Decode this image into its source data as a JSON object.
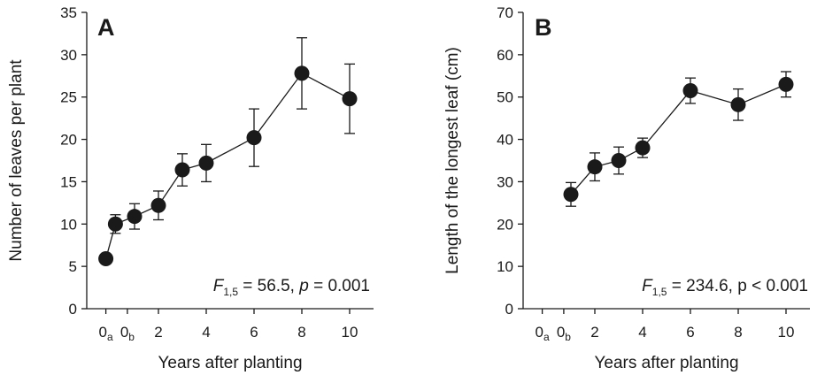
{
  "chart_data": [
    {
      "type": "line",
      "panel_label": "A",
      "xlabel": "Years after planting",
      "ylabel": "Number of leaves per plant",
      "ylim": [
        0,
        35
      ],
      "yticks": [
        "0",
        "5",
        "10",
        "15",
        "20",
        "25",
        "30",
        "35"
      ],
      "xticks": [
        {
          "main": "0",
          "sub": "a",
          "x": -0.2
        },
        {
          "main": "0",
          "sub": "b",
          "x": 0.7
        },
        {
          "main": "2",
          "sub": "",
          "x": 2
        },
        {
          "main": "4",
          "sub": "",
          "x": 4
        },
        {
          "main": "6",
          "sub": "",
          "x": 6
        },
        {
          "main": "8",
          "sub": "",
          "x": 8
        },
        {
          "main": "10",
          "sub": "",
          "x": 10
        }
      ],
      "x": [
        -0.2,
        0.2,
        1,
        2,
        3,
        4,
        6,
        8,
        10
      ],
      "y": [
        5.9,
        10.0,
        10.9,
        12.2,
        16.4,
        17.2,
        20.2,
        27.8,
        24.8
      ],
      "error": [
        0.4,
        1.1,
        1.5,
        1.7,
        1.9,
        2.2,
        3.4,
        4.2,
        4.1
      ],
      "stat": {
        "F": "F",
        "sub": "1,5",
        "rest_a": " = 56.5, ",
        "p": "p",
        "rest_b": " = 0.001"
      },
      "grid": false,
      "colors": {
        "marker": "#1a1a1a",
        "line": "#1a1a1a"
      }
    },
    {
      "type": "line",
      "panel_label": "B",
      "xlabel": "Years after planting",
      "ylabel": "Length of the longest leaf (cm)",
      "ylim": [
        0,
        70
      ],
      "yticks": [
        "0",
        "10",
        "20",
        "30",
        "40",
        "50",
        "60",
        "70"
      ],
      "xticks": [
        {
          "main": "0",
          "sub": "a",
          "x": -0.2
        },
        {
          "main": "0",
          "sub": "b",
          "x": 0.7
        },
        {
          "main": "2",
          "sub": "",
          "x": 2
        },
        {
          "main": "4",
          "sub": "",
          "x": 4
        },
        {
          "main": "6",
          "sub": "",
          "x": 6
        },
        {
          "main": "8",
          "sub": "",
          "x": 8
        },
        {
          "main": "10",
          "sub": "",
          "x": 10
        }
      ],
      "x": [
        1,
        2,
        3,
        4,
        6,
        8,
        10
      ],
      "y": [
        27.0,
        33.5,
        35.0,
        38.0,
        51.5,
        48.2,
        53.0
      ],
      "error": [
        2.8,
        3.3,
        3.2,
        2.3,
        3.0,
        3.7,
        3.0
      ],
      "stat": {
        "F": "F",
        "sub": "1,5",
        "rest_a": " = 234.6, p < 0.001",
        "p": "",
        "rest_b": ""
      },
      "grid": false,
      "colors": {
        "marker": "#1a1a1a",
        "line": "#1a1a1a"
      }
    }
  ]
}
